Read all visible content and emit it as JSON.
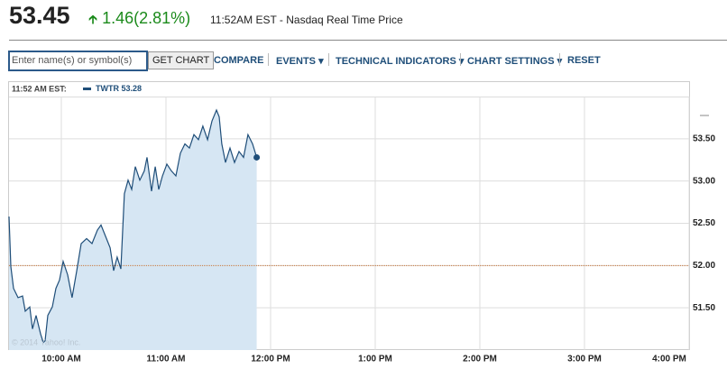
{
  "quote": {
    "price": "53.45",
    "change": "1.46",
    "change_percent": "(2.81%)",
    "timestamp": "11:52AM EST - Nasdaq Real Time Price"
  },
  "toolbar": {
    "search_placeholder": "Enter name(s) or symbol(s)",
    "button": "GET CHART",
    "links": [
      "COMPARE",
      "EVENTS",
      "TECHNICAL INDICATORS",
      "CHART SETTINGS",
      "RESET"
    ]
  },
  "chart_data": {
    "type": "line",
    "header": "11:52 AM EST:",
    "legend_value": 53.28,
    "copyright": "© 2014 Yahoo! Inc.",
    "x": [
      9.5,
      9.517,
      9.543,
      9.586,
      9.629,
      9.655,
      9.698,
      9.724,
      9.759,
      9.802,
      9.828,
      9.845,
      9.871,
      9.914,
      9.948,
      9.983,
      10.017,
      10.06,
      10.103,
      10.147,
      10.19,
      10.241,
      10.293,
      10.345,
      10.379,
      10.431,
      10.466,
      10.5,
      10.534,
      10.569,
      10.603,
      10.638,
      10.672,
      10.707,
      10.75,
      10.793,
      10.819,
      10.862,
      10.897,
      10.931,
      10.966,
      11.009,
      11.052,
      11.095,
      11.138,
      11.181,
      11.224,
      11.267,
      11.31,
      11.353,
      11.397,
      11.44,
      11.483,
      11.509,
      11.534,
      11.569,
      11.612,
      11.655,
      11.698,
      11.741,
      11.784,
      11.828,
      11.867
    ],
    "series": [
      {
        "name": "TWTR",
        "color": "#1f4e79",
        "values": [
          52.58,
          51.99,
          51.73,
          51.62,
          51.64,
          51.46,
          51.51,
          51.25,
          51.41,
          51.19,
          51.09,
          51.11,
          51.41,
          51.51,
          51.73,
          51.83,
          52.05,
          51.89,
          51.62,
          51.94,
          52.26,
          52.32,
          52.26,
          52.42,
          52.48,
          52.32,
          52.21,
          51.94,
          52.1,
          51.96,
          52.85,
          53.01,
          52.9,
          53.17,
          53.01,
          53.12,
          53.28,
          52.88,
          53.17,
          52.9,
          53.06,
          53.2,
          53.12,
          53.06,
          53.33,
          53.44,
          53.39,
          53.55,
          53.49,
          53.65,
          53.49,
          53.71,
          53.84,
          53.76,
          53.44,
          53.22,
          53.39,
          53.22,
          53.35,
          53.28,
          53.55,
          53.44,
          53.28
        ]
      }
    ],
    "area_color": "#d6e6f3",
    "reference_line": 52,
    "reference_color": "#c8763a",
    "xlim": [
      9.5,
      16
    ],
    "xticks": [
      {
        "value": 10,
        "label": "10:00 AM"
      },
      {
        "value": 11,
        "label": "11:00 AM"
      },
      {
        "value": 12,
        "label": "12:00 PM"
      },
      {
        "value": 13,
        "label": "1:00 PM"
      },
      {
        "value": 14,
        "label": "2:00 PM"
      },
      {
        "value": 15,
        "label": "3:00 PM"
      },
      {
        "value": 16,
        "label": "4:00 PM"
      }
    ],
    "ylim": [
      51,
      54
    ],
    "yticks": [
      {
        "value": 51.5,
        "label": "51.50"
      },
      {
        "value": 52,
        "label": "52.00"
      },
      {
        "value": 52.5,
        "label": "52.50"
      },
      {
        "value": 53,
        "label": "53.00"
      },
      {
        "value": 53.5,
        "label": "53.50"
      }
    ],
    "grid": true
  }
}
